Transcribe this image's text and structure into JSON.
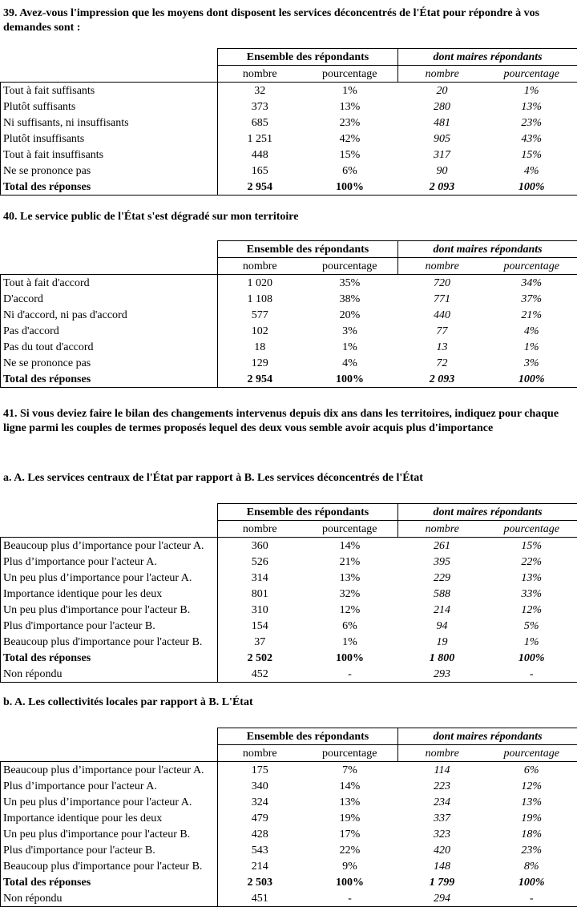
{
  "header_groups": {
    "all": "Ensemble des répondants",
    "mayors": "dont maires répondants"
  },
  "sub_headers": {
    "count": "nombre",
    "percent": "pourcentage"
  },
  "sections": [
    {
      "title": "39. Avez-vous l'impression que les moyens dont disposent les services déconcentrés de l'État pour répondre à vos demandes sont :",
      "rows": [
        [
          "Tout à fait suffisants",
          "32",
          "1%",
          "20",
          "1%"
        ],
        [
          "Plutôt suffisants",
          "373",
          "13%",
          "280",
          "13%"
        ],
        [
          "Ni suffisants, ni insuffisants",
          "685",
          "23%",
          "481",
          "23%"
        ],
        [
          "Plutôt insuffisants",
          "1 251",
          "42%",
          "905",
          "43%"
        ],
        [
          "Tout à fait insuffisants",
          "448",
          "15%",
          "317",
          "15%"
        ],
        [
          "Ne se prononce pas",
          "165",
          "6%",
          "90",
          "4%"
        ]
      ],
      "total": [
        "Total des réponses",
        "2 954",
        "100%",
        "2 093",
        "100%"
      ]
    },
    {
      "title": "40. Le service public de l'État s'est dégradé sur mon territoire",
      "rows": [
        [
          "Tout à fait d'accord",
          "1 020",
          "35%",
          "720",
          "34%"
        ],
        [
          "D'accord",
          "1 108",
          "38%",
          "771",
          "37%"
        ],
        [
          "Ni d'accord, ni pas d'accord",
          "577",
          "20%",
          "440",
          "21%"
        ],
        [
          "Pas d'accord",
          "102",
          "3%",
          "77",
          "4%"
        ],
        [
          "Pas du tout d'accord",
          "18",
          "1%",
          "13",
          "1%"
        ],
        [
          "Ne se prononce pas",
          "129",
          "4%",
          "72",
          "3%"
        ]
      ],
      "total": [
        "Total des réponses",
        "2 954",
        "100%",
        "2 093",
        "100%"
      ]
    },
    {
      "title": "41. Si vous deviez faire le bilan des changements intervenus depuis dix ans dans les territoires, indiquez pour chaque ligne parmi les couples de termes proposés lequel des deux vous semble avoir acquis plus d'importance",
      "subtitle": "a. A. Les services centraux de l'État par rapport à B. Les services déconcentrés de l'État",
      "rows": [
        [
          "Beaucoup plus d’importance pour l'acteur A.",
          "360",
          "14%",
          "261",
          "15%"
        ],
        [
          "Plus d’importance pour l'acteur A.",
          "526",
          "21%",
          "395",
          "22%"
        ],
        [
          "Un peu plus d’importance pour l'acteur A.",
          "314",
          "13%",
          "229",
          "13%"
        ],
        [
          "Importance identique pour les deux",
          "801",
          "32%",
          "588",
          "33%"
        ],
        [
          "Un peu plus d'importance pour l'acteur B.",
          "310",
          "12%",
          "214",
          "12%"
        ],
        [
          "Plus d'importance pour l'acteur B.",
          "154",
          "6%",
          "94",
          "5%"
        ],
        [
          "Beaucoup plus d'importance pour l'acteur B.",
          "37",
          "1%",
          "19",
          "1%"
        ]
      ],
      "total": [
        "Total des réponses",
        "2 502",
        "100%",
        "1 800",
        "100%"
      ],
      "no_answer": [
        "Non répondu",
        "452",
        "-",
        "293",
        "-"
      ]
    },
    {
      "subtitle": "b. A. Les collectivités locales par rapport à B. L'État",
      "rows": [
        [
          "Beaucoup plus d’importance pour l'acteur A.",
          "175",
          "7%",
          "114",
          "6%"
        ],
        [
          "Plus d’importance pour l'acteur A.",
          "340",
          "14%",
          "223",
          "12%"
        ],
        [
          "Un peu plus d’importance pour l'acteur A.",
          "324",
          "13%",
          "234",
          "13%"
        ],
        [
          "Importance identique pour les deux",
          "479",
          "19%",
          "337",
          "19%"
        ],
        [
          "Un peu plus d'importance pour l'acteur B.",
          "428",
          "17%",
          "323",
          "18%"
        ],
        [
          "Plus d'importance pour l'acteur B.",
          "543",
          "22%",
          "420",
          "23%"
        ],
        [
          "Beaucoup plus d'importance pour l'acteur B.",
          "214",
          "9%",
          "148",
          "8%"
        ]
      ],
      "total": [
        "Total des réponses",
        "2 503",
        "100%",
        "1 799",
        "100%"
      ],
      "no_answer": [
        "Non répondu",
        "451",
        "-",
        "294",
        "-"
      ]
    }
  ]
}
